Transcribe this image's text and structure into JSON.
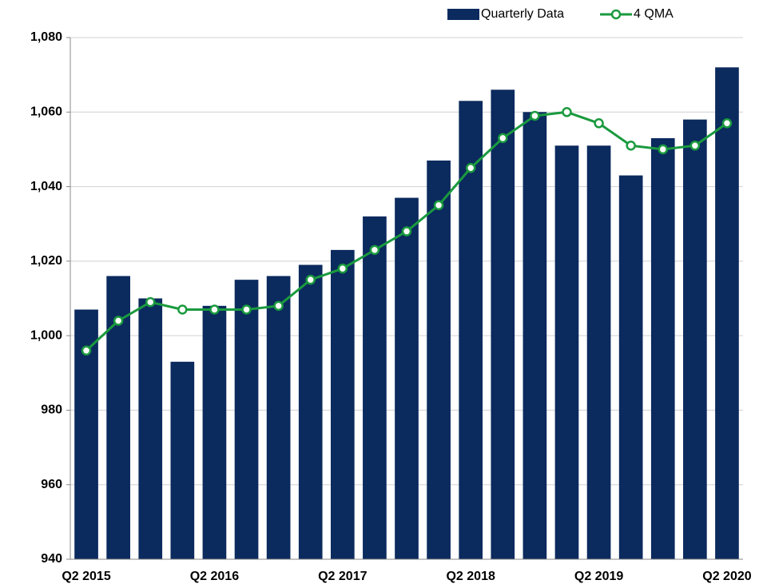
{
  "chart_data": {
    "type": "bar-line",
    "categories": [
      "Q2 2015",
      null,
      null,
      null,
      "Q2 2016",
      null,
      null,
      null,
      "Q2 2017",
      null,
      null,
      null,
      "Q2 2018",
      null,
      null,
      null,
      "Q2 2019",
      null,
      null,
      null,
      "Q2 2020"
    ],
    "series": [
      {
        "name": "Quarterly Data",
        "type": "bar",
        "color": "#0b2a5e",
        "values": [
          1007,
          1016,
          1010,
          993,
          1008,
          1015,
          1016,
          1019,
          1023,
          1032,
          1037,
          1047,
          1063,
          1066,
          1060,
          1051,
          1051,
          1043,
          1053,
          1058,
          1072
        ]
      },
      {
        "name": "4 QMA",
        "type": "line",
        "color": "#1a9a3e",
        "values": [
          996,
          1004,
          1009,
          1007,
          1007,
          1007,
          1008,
          1015,
          1018,
          1023,
          1028,
          1035,
          1045,
          1053,
          1059,
          1060,
          1057,
          1051,
          1050,
          1051,
          1057
        ]
      }
    ],
    "ylim": [
      940,
      1080
    ],
    "yticks": [
      940,
      960,
      980,
      {
        "value": 1000,
        "label": "1,000"
      },
      {
        "value": 1020,
        "label": "1,020"
      },
      {
        "value": 1040,
        "label": "1,040"
      },
      {
        "value": 1060,
        "label": "1,060"
      },
      {
        "value": 1080,
        "label": "1,080"
      }
    ],
    "grid": true,
    "legend": "top-right"
  }
}
